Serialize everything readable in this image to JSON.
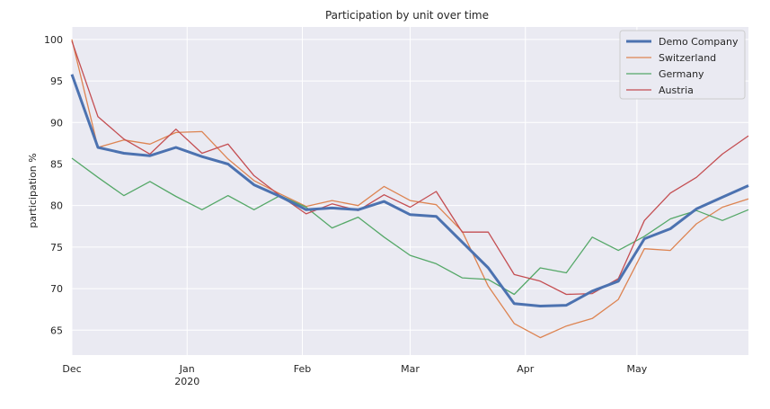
{
  "chart_data": {
    "type": "line",
    "title": "Participation by unit over time",
    "xlabel": "",
    "ylabel": "participation %",
    "grid": true,
    "legend_position": "top-right",
    "xlim": [
      "2019-12-01",
      "2020-05-31"
    ],
    "ylim": [
      62,
      101.5
    ],
    "x_ticks": [
      {
        "date": "2019-12-01",
        "label": "Dec",
        "sublabel": ""
      },
      {
        "date": "2020-01-01",
        "label": "Jan",
        "sublabel": "2020"
      },
      {
        "date": "2020-02-01",
        "label": "Feb",
        "sublabel": ""
      },
      {
        "date": "2020-03-01",
        "label": "Mar",
        "sublabel": ""
      },
      {
        "date": "2020-04-01",
        "label": "Apr",
        "sublabel": ""
      },
      {
        "date": "2020-05-01",
        "label": "May",
        "sublabel": ""
      }
    ],
    "y_ticks": [
      65,
      70,
      75,
      80,
      85,
      90,
      95,
      100
    ],
    "x": [
      "2019-12-01",
      "2019-12-08",
      "2019-12-15",
      "2019-12-22",
      "2019-12-29",
      "2020-01-05",
      "2020-01-12",
      "2020-01-19",
      "2020-01-26",
      "2020-02-02",
      "2020-02-09",
      "2020-02-16",
      "2020-02-23",
      "2020-03-01",
      "2020-03-08",
      "2020-03-15",
      "2020-03-22",
      "2020-03-29",
      "2020-04-05",
      "2020-04-12",
      "2020-04-19",
      "2020-04-26",
      "2020-05-03",
      "2020-05-10",
      "2020-05-17",
      "2020-05-24",
      "2020-05-31"
    ],
    "series": [
      {
        "name": "Demo Company",
        "color": "#4c72b0",
        "width": 3,
        "values": [
          95.8,
          87.0,
          86.3,
          86.0,
          87.0,
          85.9,
          85.0,
          82.5,
          81.1,
          79.5,
          79.7,
          79.5,
          80.5,
          78.9,
          78.7,
          75.6,
          72.5,
          68.2,
          67.9,
          68.0,
          69.7,
          70.9,
          76.0,
          77.2,
          79.6,
          81.0,
          82.4
        ]
      },
      {
        "name": "Switzerland",
        "color": "#dd8452",
        "width": 1.3,
        "values": [
          100.0,
          87.0,
          87.9,
          87.4,
          88.8,
          88.9,
          85.6,
          83.0,
          81.4,
          79.9,
          80.6,
          80.0,
          82.3,
          80.6,
          80.1,
          76.9,
          70.3,
          65.8,
          64.1,
          65.5,
          66.4,
          68.7,
          74.8,
          74.6,
          77.8,
          79.8,
          80.8
        ]
      },
      {
        "name": "Germany",
        "color": "#55a868",
        "width": 1.3,
        "values": [
          85.7,
          83.4,
          81.2,
          82.9,
          81.1,
          79.5,
          81.2,
          79.5,
          81.2,
          79.8,
          77.3,
          78.6,
          76.2,
          74.0,
          73.0,
          71.3,
          71.1,
          69.3,
          72.5,
          71.9,
          76.2,
          74.6,
          76.3,
          78.4,
          79.4,
          78.2,
          79.5
        ]
      },
      {
        "name": "Austria",
        "color": "#c44e52",
        "width": 1.3,
        "values": [
          99.8,
          90.7,
          88.0,
          86.2,
          89.2,
          86.3,
          87.4,
          83.6,
          81.2,
          79.0,
          80.2,
          79.4,
          81.3,
          79.8,
          81.7,
          76.8,
          76.8,
          71.7,
          70.9,
          69.3,
          69.4,
          71.2,
          78.2,
          81.5,
          83.4,
          86.2,
          88.4
        ]
      }
    ]
  }
}
